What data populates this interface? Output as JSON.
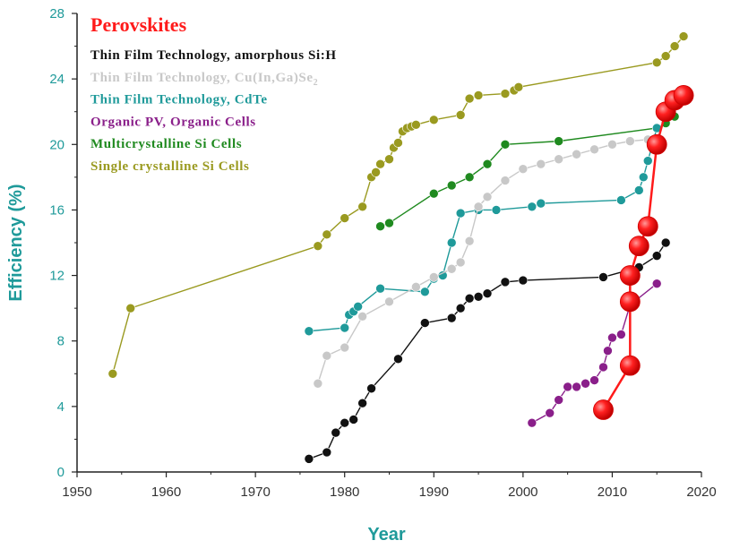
{
  "chart_data": {
    "type": "line",
    "title": "",
    "xlabel": "Year",
    "ylabel": "Efficiency (%)",
    "xlim": [
      1950,
      2020
    ],
    "ylim": [
      0,
      28
    ],
    "xticks": [
      1950,
      1960,
      1970,
      1980,
      1990,
      2000,
      2010,
      2020
    ],
    "yticks": [
      0,
      4,
      8,
      12,
      16,
      20,
      24,
      28
    ],
    "xtick_labels": [
      "1950",
      "1960",
      "1970",
      "1980",
      "1990",
      "2000",
      "2010",
      "2020"
    ],
    "ytick_labels": [
      "0",
      "4",
      "8",
      "12",
      "16",
      "20",
      "24",
      "28"
    ],
    "legend_position": "top-left",
    "axis_color": "#1f9a9a",
    "series": [
      {
        "name": "Single crystalline Si Cells",
        "color": "#9a9a20",
        "x": [
          1954,
          1956,
          1977,
          1978,
          1980,
          1982,
          1983,
          1983.5,
          1984,
          1985,
          1985.5,
          1986,
          1986.5,
          1987,
          1987.5,
          1988,
          1990,
          1993,
          1994,
          1995,
          1998,
          1999,
          1999.5,
          2015,
          2016,
          2017,
          2018
        ],
        "y": [
          6.0,
          10.0,
          13.8,
          14.5,
          15.5,
          16.2,
          18.0,
          18.3,
          18.8,
          19.1,
          19.8,
          20.1,
          20.8,
          21.0,
          21.1,
          21.2,
          21.5,
          21.8,
          22.8,
          23.0,
          23.1,
          23.3,
          23.5,
          25.0,
          25.4,
          26.0,
          26.6
        ]
      },
      {
        "name": "Multicrystalline Si Cells",
        "color": "#1f8a1f",
        "x": [
          1984,
          1985,
          1990,
          1992,
          1994,
          1996,
          1998,
          2004,
          2015,
          2016,
          2017
        ],
        "y": [
          15.0,
          15.2,
          17.0,
          17.5,
          18.0,
          18.8,
          20.0,
          20.2,
          21.0,
          21.3,
          21.7
        ]
      },
      {
        "name": "Thin Film Technology, CdTe",
        "color": "#1f9a9a",
        "x": [
          1976,
          1980,
          1980.5,
          1981,
          1981.5,
          1984,
          1989,
          1990,
          1991,
          1992,
          1993,
          1995,
          1997,
          2001,
          2002,
          2011,
          2013,
          2013.5,
          2014,
          2015
        ],
        "y": [
          8.6,
          8.8,
          9.6,
          9.8,
          10.1,
          11.2,
          11.0,
          11.8,
          12.0,
          14.0,
          15.8,
          16.0,
          16.0,
          16.2,
          16.4,
          16.6,
          17.2,
          18.0,
          19.0,
          21.0
        ]
      },
      {
        "name": "Thin Film Technology, Cu(In,Ga)Se2",
        "color": "#c8c8c8",
        "x": [
          1977,
          1978,
          1980,
          1982,
          1985,
          1988,
          1990,
          1992,
          1993,
          1994,
          1995,
          1996,
          1998,
          2000,
          2002,
          2004,
          2006,
          2008,
          2010,
          2012,
          2014
        ],
        "y": [
          5.4,
          7.1,
          7.6,
          9.5,
          10.4,
          11.3,
          11.9,
          12.4,
          12.8,
          14.1,
          16.2,
          16.8,
          17.8,
          18.5,
          18.8,
          19.1,
          19.4,
          19.7,
          20.0,
          20.2,
          20.3
        ]
      },
      {
        "name": "Thin Film Technology, amorphous Si:H",
        "color": "#111111",
        "x": [
          1976,
          1978,
          1979,
          1980,
          1981,
          1982,
          1983,
          1986,
          1989,
          1992,
          1993,
          1994,
          1995,
          1996,
          1998,
          2000,
          2009,
          2013,
          2015,
          2016
        ],
        "y": [
          0.8,
          1.2,
          2.4,
          3.0,
          3.2,
          4.2,
          5.1,
          6.9,
          9.1,
          9.4,
          10.0,
          10.6,
          10.7,
          10.9,
          11.6,
          11.7,
          11.9,
          12.5,
          13.2,
          14.0
        ]
      },
      {
        "name": "Organic PV, Organic Cells",
        "color": "#8a1f8a",
        "x": [
          2001,
          2003,
          2004,
          2005,
          2006,
          2007,
          2008,
          2009,
          2009.5,
          2010,
          2011,
          2012,
          2015
        ],
        "y": [
          3.0,
          3.6,
          4.4,
          5.2,
          5.2,
          5.4,
          5.6,
          6.4,
          7.4,
          8.2,
          8.4,
          10.2,
          11.5
        ]
      },
      {
        "name": "Perovskites",
        "color": "#ff1a1a",
        "x": [
          2009,
          2012,
          2012,
          2012,
          2013,
          2014,
          2015,
          2016,
          2017,
          2018
        ],
        "y": [
          3.8,
          6.5,
          10.4,
          12.0,
          13.8,
          15.0,
          20.0,
          22.0,
          22.7,
          23.0
        ]
      }
    ],
    "legend": [
      {
        "label": "Perovskites",
        "color": "#ff1a1a"
      },
      {
        "label": "Thin Film Technology, amorphous Si:H",
        "color": "#111111"
      },
      {
        "label": "Thin Film Technology, Cu(In,Ga)Se",
        "sub": "2",
        "color": "#c8c8c8"
      },
      {
        "label": "Thin Film Technology, CdTe",
        "color": "#1f9a9a"
      },
      {
        "label": "Organic PV, Organic Cells",
        "color": "#8a1f8a"
      },
      {
        "label": "Multicrystalline Si Cells",
        "color": "#1f8a1f"
      },
      {
        "label": "Single crystalline Si Cells",
        "color": "#9a9a20"
      }
    ]
  }
}
